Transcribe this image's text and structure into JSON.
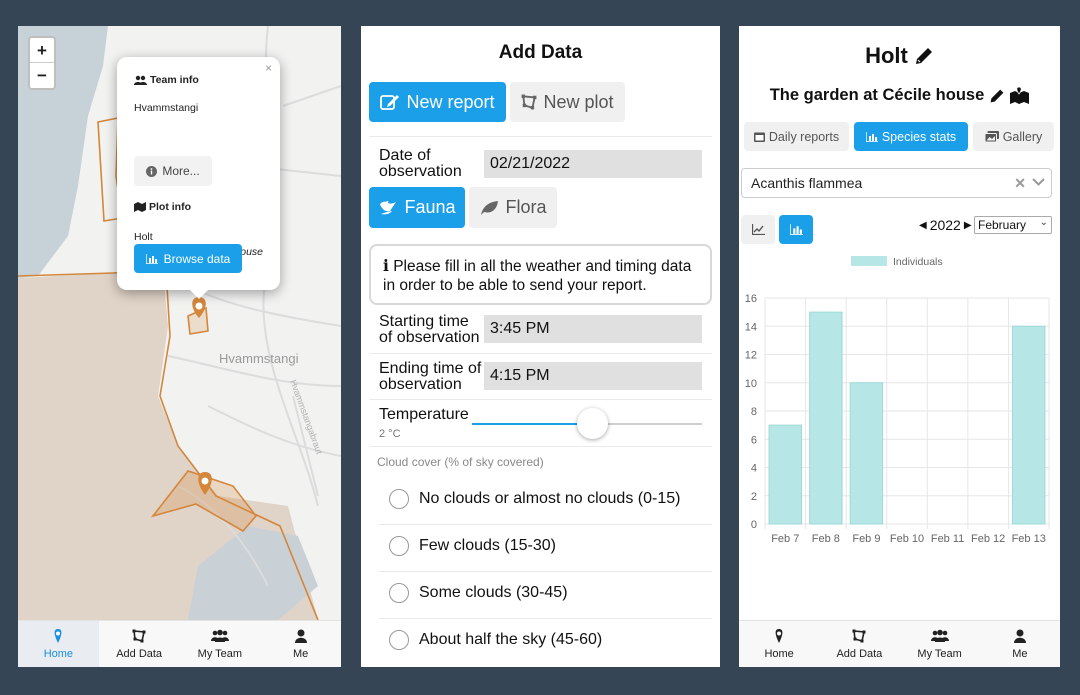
{
  "map_panel": {
    "zoom_in": "+",
    "zoom_out": "−",
    "place_label": "Hvammstangi",
    "road_label": "Hvammstangabraut",
    "popup": {
      "close": "×",
      "team_heading": "Team info",
      "team_name": "Hvammstangi",
      "more_label": "More...",
      "plot_heading": "Plot info",
      "plot_name": "Holt",
      "plot_desc": "The garden at Cécile house",
      "browse_label": "Browse data"
    }
  },
  "nav": {
    "home": "Home",
    "add_data": "Add Data",
    "my_team": "My Team",
    "me": "Me"
  },
  "add_data": {
    "title": "Add Data",
    "new_report": "New report",
    "new_plot": "New plot",
    "date_label_1": "Date of",
    "date_label_2": "observation",
    "date_value": "02/21/2022",
    "fauna": "Fauna",
    "flora": "Flora",
    "notice_line1": "Please fill in all the weather and timing data",
    "notice_line2": "in order to be able to send your report.",
    "start_label_1": "Starting time",
    "start_label_2": "of observation",
    "start_value": "3:45 PM",
    "end_label_1": "Ending time of",
    "end_label_2": "observation",
    "end_value": "4:15 PM",
    "temp_label": "Temperature",
    "temp_value": "2 °C",
    "temp_slider_fraction": 0.52,
    "cloud_label": "Cloud cover (% of sky covered)",
    "cloud_options": [
      "No clouds or almost no clouds (0-15)",
      "Few clouds (15-30)",
      "Some clouds (30-45)",
      "About half the sky (45-60)"
    ]
  },
  "stats": {
    "plot_title": "Holt",
    "subtitle": "The garden at Cécile house",
    "tab_daily": "Daily reports",
    "tab_species": "Species stats",
    "tab_gallery": "Gallery",
    "species": "Acanthis flammea",
    "year": "2022",
    "month": "February"
  },
  "chart_data": {
    "type": "bar",
    "categories": [
      "Feb 7",
      "Feb 8",
      "Feb 9",
      "Feb 10",
      "Feb 11",
      "Feb 12",
      "Feb 13"
    ],
    "series": [
      {
        "name": "Individuals",
        "values": [
          7,
          15,
          10,
          0,
          0,
          0,
          14
        ]
      }
    ],
    "ylim": [
      0,
      16
    ],
    "yticks": [
      0,
      2,
      4,
      6,
      8,
      10,
      12,
      14,
      16
    ],
    "grid": true,
    "legend": "top",
    "bar_color": "#b6e6e6"
  },
  "colors": {
    "primary": "#1a9fe8",
    "plot_outline": "#d4863b",
    "background": "#364556"
  }
}
